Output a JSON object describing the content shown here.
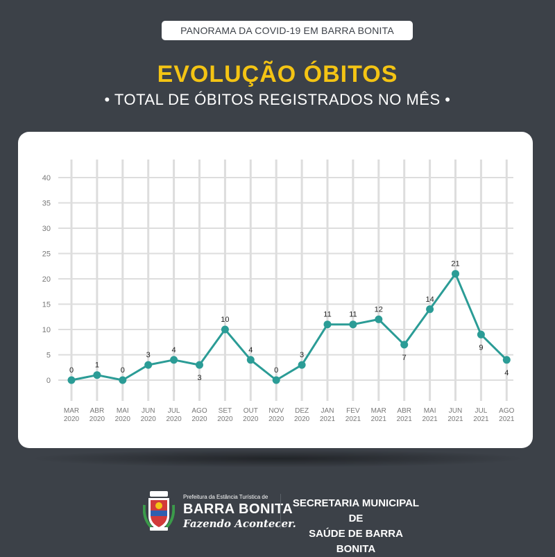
{
  "header": {
    "pill": "PANORAMA DA COVID-19 EM BARRA BONITA",
    "title": "EVOLUÇÃO ÓBITOS",
    "subtitle": "• TOTAL DE ÓBITOS REGISTRADOS NO MÊS •"
  },
  "colors": {
    "background": "#3c4148",
    "title": "#f4c414",
    "line": "#2b9c96",
    "grid": "#dddddd",
    "axis_text": "#777777"
  },
  "chart_data": {
    "type": "line",
    "title": "",
    "xlabel": "",
    "ylabel": "",
    "ylim": [
      0,
      40
    ],
    "yticks": [
      "0",
      "5",
      "10",
      "15",
      "20",
      "25",
      "30",
      "35",
      "40"
    ],
    "grid": true,
    "categories": [
      {
        "month": "MAR",
        "year": "2020"
      },
      {
        "month": "ABR",
        "year": "2020"
      },
      {
        "month": "MAI",
        "year": "2020"
      },
      {
        "month": "JUN",
        "year": "2020"
      },
      {
        "month": "JUL",
        "year": "2020"
      },
      {
        "month": "AGO",
        "year": "2020"
      },
      {
        "month": "SET",
        "year": "2020"
      },
      {
        "month": "OUT",
        "year": "2020"
      },
      {
        "month": "NOV",
        "year": "2020"
      },
      {
        "month": "DEZ",
        "year": "2020"
      },
      {
        "month": "JAN",
        "year": "2021"
      },
      {
        "month": "FEV",
        "year": "2021"
      },
      {
        "month": "MAR",
        "year": "2021"
      },
      {
        "month": "ABR",
        "year": "2021"
      },
      {
        "month": "MAI",
        "year": "2021"
      },
      {
        "month": "JUN",
        "year": "2021"
      },
      {
        "month": "JUL",
        "year": "2021"
      },
      {
        "month": "AGO",
        "year": "2021"
      }
    ],
    "series": [
      {
        "values": [
          0,
          1,
          0,
          3,
          4,
          3,
          10,
          4,
          0,
          3,
          11,
          11,
          12,
          7,
          14,
          21,
          9,
          4
        ]
      }
    ]
  },
  "footer": {
    "logo_small": "Prefeitura da Estância Turística de",
    "logo_name": "BARRA BONITA",
    "logo_slogan": "Fazendo Acontecer.",
    "secretaria_line1": "SECRETARIA MUNICIPAL DE",
    "secretaria_line2": "SAÚDE DE BARRA BONITA"
  }
}
